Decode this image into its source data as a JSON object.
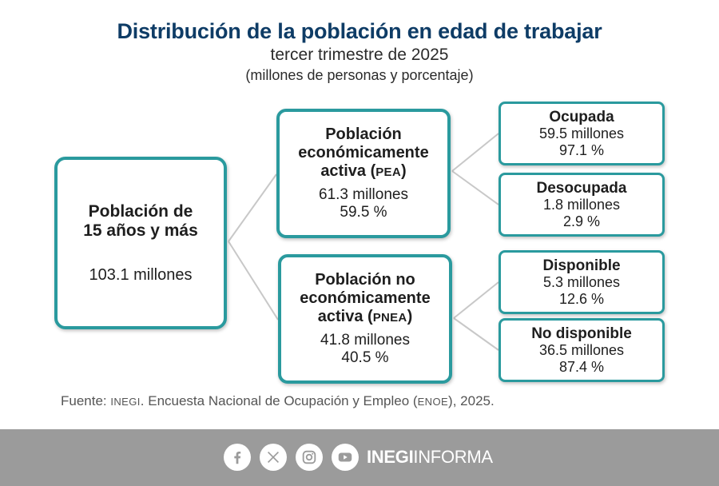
{
  "header": {
    "title": "Distribución de la población en edad de trabajar",
    "subtitle": "tercer trimestre de 2025",
    "units": "(millones de personas y porcentaje)"
  },
  "root": {
    "label_line1": "Población de",
    "label_line2": "15 años y más",
    "value": "103.1 millones"
  },
  "pea": {
    "label_line1": "Población",
    "label_line2": "económicamente",
    "label_line3_prefix": "activa (",
    "label_abbr": "PEA",
    "label_line3_suffix": ")",
    "value": "61.3 millones",
    "percent": "59.5 %"
  },
  "pnea": {
    "label_line1": "Población no",
    "label_line2": "económicamente",
    "label_line3_prefix": "activa (",
    "label_abbr": "PNEA",
    "label_line3_suffix": ")",
    "value": "41.8 millones",
    "percent": "40.5 %"
  },
  "ocupada": {
    "label": "Ocupada",
    "value": "59.5 millones",
    "percent": "97.1 %"
  },
  "desocupada": {
    "label": "Desocupada",
    "value": "1.8 millones",
    "percent": "2.9 %"
  },
  "disponible": {
    "label": "Disponible",
    "value": "5.3 millones",
    "percent": "12.6 %"
  },
  "no_disponible": {
    "label": "No disponible",
    "value": "36.5 millones",
    "percent": "87.4 %"
  },
  "source": {
    "prefix": "Fuente: ",
    "org": "INEGI",
    "middle": ". Encuesta Nacional de Ocupación y Empleo (",
    "survey": "ENOE",
    "suffix": "), 2025."
  },
  "footer": {
    "icons": [
      "facebook-icon",
      "x-icon",
      "instagram-icon",
      "youtube-icon"
    ],
    "brand_bold": "INEGI",
    "brand_light": "INFORMA"
  },
  "colors": {
    "title": "#0e3c66",
    "box_border": "#2a9a9e",
    "connector": "#c8c8c8",
    "footer_bg": "#9b9b9b"
  }
}
